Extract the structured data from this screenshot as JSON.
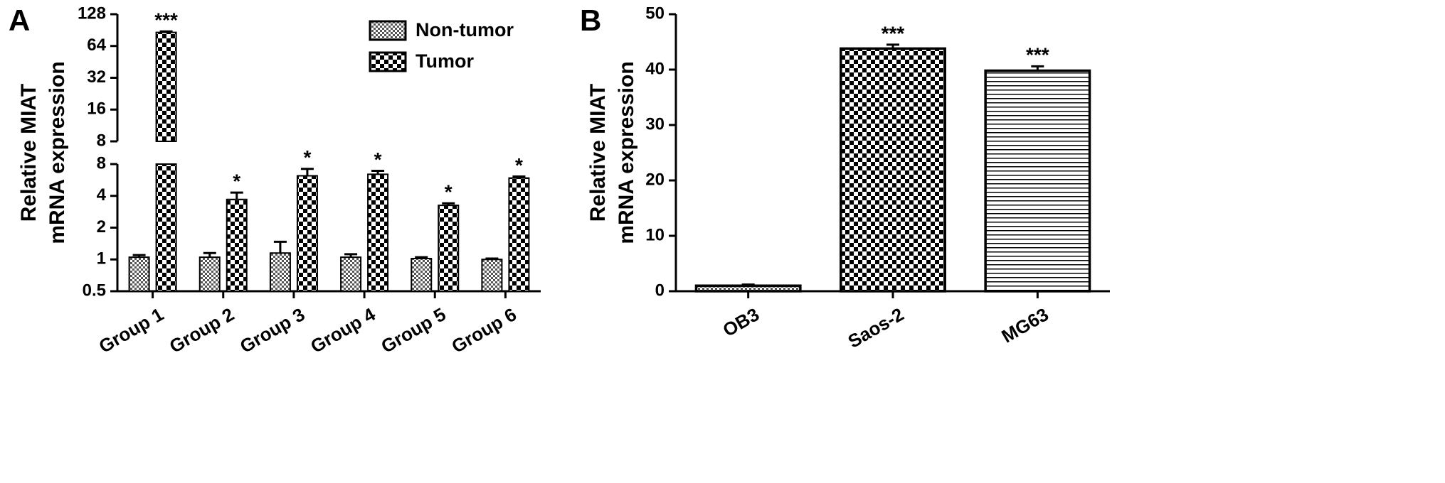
{
  "chart_data": [
    {
      "type": "bar",
      "panel_label": "A",
      "ylabel": [
        "Relative MIAT",
        "mRNA expression"
      ],
      "yscale": "log",
      "y_segments": [
        {
          "ylim": [
            0.5,
            8
          ],
          "yticks": [
            0.5,
            1,
            2,
            4,
            8
          ]
        },
        {
          "ylim": [
            8,
            128
          ],
          "yticks": [
            8,
            16,
            32,
            64,
            128
          ]
        }
      ],
      "categories": [
        "Group 1",
        "Group 2",
        "Group 3",
        "Group 4",
        "Group 5",
        "Group 6"
      ],
      "series": [
        {
          "name": "Non-tumor",
          "color": "#000000",
          "pattern": "fine-checker",
          "values": [
            1.05,
            1.05,
            1.15,
            1.05,
            1.02,
            1.0
          ],
          "errors": [
            0.05,
            0.1,
            0.32,
            0.07,
            0.03,
            0.02
          ]
        },
        {
          "name": "Tumor",
          "color": "#000000",
          "pattern": "checker",
          "values": [
            86,
            3.7,
            6.2,
            6.4,
            3.25,
            5.9
          ],
          "errors": [
            2,
            0.6,
            1.0,
            0.5,
            0.15,
            0.2
          ],
          "annotations": [
            "***",
            "*",
            "*",
            "*",
            "*",
            "*"
          ]
        }
      ],
      "legend": "upper right"
    },
    {
      "type": "bar",
      "panel_label": "B",
      "ylabel": [
        "Relative MIAT",
        "mRNA expression"
      ],
      "ylim": [
        0,
        50
      ],
      "yticks": [
        0,
        10,
        20,
        30,
        40,
        50
      ],
      "categories": [
        "OB3",
        "Saos-2",
        "MG63"
      ],
      "values": [
        1.0,
        43.8,
        39.8
      ],
      "errors": [
        0.2,
        0.7,
        0.8
      ],
      "patterns": [
        "fine-checker",
        "checker",
        "hlines"
      ],
      "color": "#000000",
      "annotations": [
        null,
        "***",
        "***"
      ]
    }
  ]
}
